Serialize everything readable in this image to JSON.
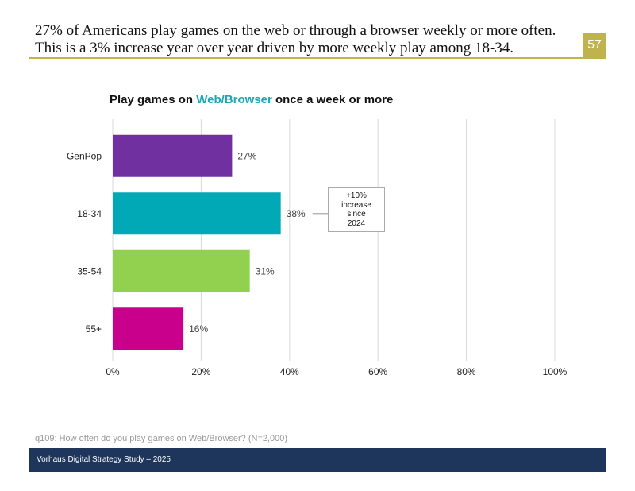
{
  "header": {
    "headline": "27% of Americans play games on the web or through a browser weekly or more often. This is a 3% increase year over year driven by more weekly play among 18-34.",
    "page_number": "57"
  },
  "chart_data": {
    "type": "bar",
    "orientation": "horizontal",
    "title_prefix": "Play games on ",
    "title_highlight": "Web/Browser",
    "title_suffix": " once a week or more",
    "categories": [
      "GenPop",
      "18-34",
      "35-54",
      "55+"
    ],
    "values": [
      27,
      38,
      31,
      16
    ],
    "value_labels": [
      "27%",
      "38%",
      "31%",
      "16%"
    ],
    "colors": [
      "#7030a0",
      "#00a9b5",
      "#92d050",
      "#c8008c"
    ],
    "xlim": [
      0,
      100
    ],
    "xticks": [
      "0%",
      "20%",
      "40%",
      "60%",
      "80%",
      "100%"
    ],
    "grid": true,
    "annotation": {
      "lines": [
        "+10%",
        "increase",
        "since",
        "2024"
      ],
      "target": "18-34"
    }
  },
  "footnote": "q109: How often do you play games on Web/Browser? (N=2,000)",
  "footer": "Vorhaus Digital Strategy Study – 2025"
}
